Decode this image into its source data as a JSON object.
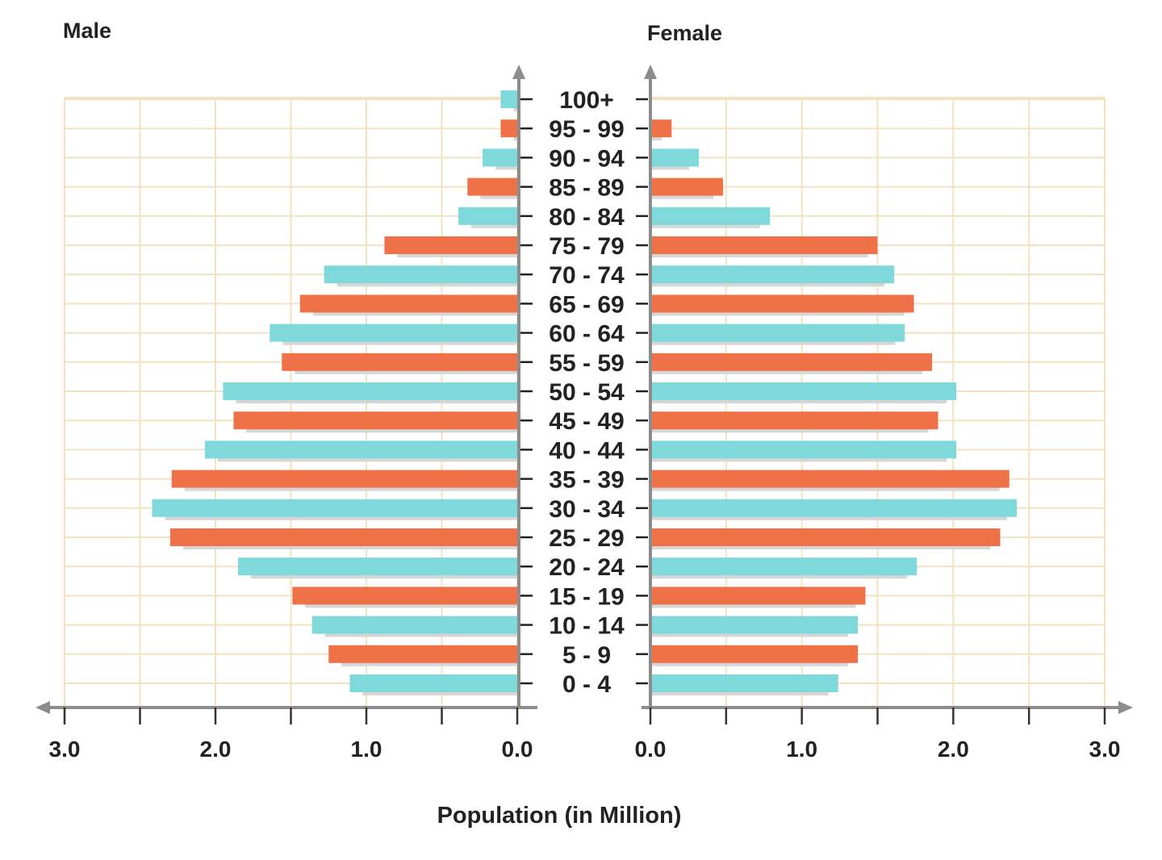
{
  "chart_data": {
    "type": "bar",
    "subtype": "population-pyramid",
    "xlabel": "Population (in Million)",
    "left_title": "Male",
    "right_title": "Female",
    "xlim": [
      0,
      3.0
    ],
    "x_tick_labels": [
      "0.0",
      "1.0",
      "2.0",
      "3.0"
    ],
    "grid": true,
    "categories": [
      "100+",
      "95 - 99",
      "90 - 94",
      "85 - 89",
      "80 - 84",
      "75 - 79",
      "70 - 74",
      "65 - 69",
      "60 - 64",
      "55 - 59",
      "50 - 54",
      "45 - 49",
      "40 - 44",
      "35 - 39",
      "30 - 34",
      "25 - 29",
      "20 - 24",
      "15 - 19",
      "10 - 14",
      "5 - 9",
      "0 - 4"
    ],
    "series": [
      {
        "name": "Male",
        "values": [
          0.11,
          0.11,
          0.23,
          0.33,
          0.39,
          0.88,
          1.28,
          1.44,
          1.64,
          1.56,
          1.95,
          1.88,
          2.07,
          2.29,
          2.42,
          2.3,
          1.85,
          1.49,
          1.36,
          1.25,
          1.11
        ]
      },
      {
        "name": "Female",
        "values": [
          0.0,
          0.14,
          0.32,
          0.48,
          0.79,
          1.5,
          1.61,
          1.74,
          1.68,
          1.86,
          2.02,
          1.9,
          2.02,
          2.37,
          2.42,
          2.31,
          1.76,
          1.42,
          1.37,
          1.37,
          1.24
        ]
      }
    ],
    "colors": {
      "teal": "#7FD9DA",
      "orange": "#EF7147",
      "grid": "#F3E2C0",
      "axis": "#8C8C8C",
      "shadow": "#D6D6D6"
    }
  }
}
